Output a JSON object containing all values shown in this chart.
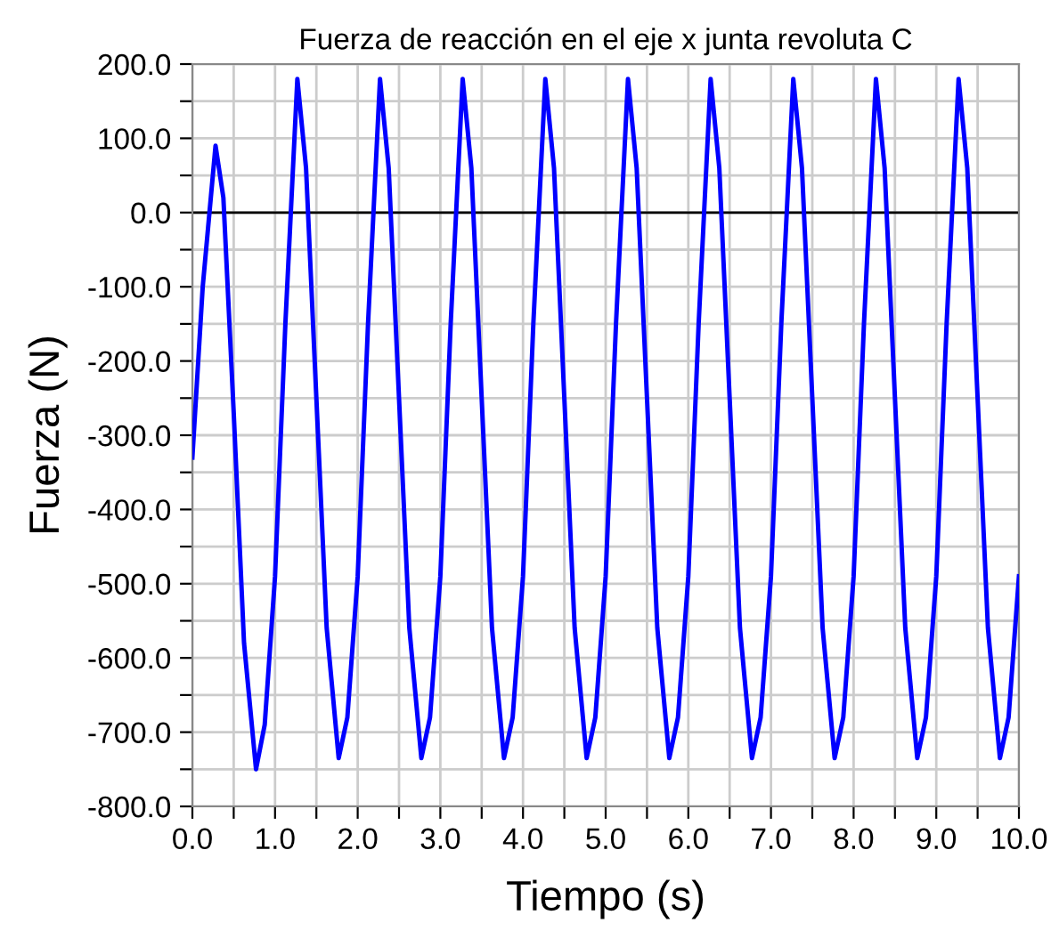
{
  "chart_data": {
    "type": "line",
    "title": "Fuerza de reacción en el eje x junta revoluta C",
    "xlabel": "Tiempo (s)",
    "ylabel": "Fuerza (N)",
    "series": [
      {
        "color": "#0000ff",
        "x": [
          0,
          0.125,
          0.28,
          0.375,
          0.5,
          0.625,
          0.77,
          0.875,
          1,
          1.125,
          1.27,
          1.375,
          1.5,
          1.625,
          1.77,
          1.875,
          2,
          2.125,
          2.27,
          2.375,
          2.5,
          2.625,
          2.77,
          2.875,
          3,
          3.125,
          3.27,
          3.375,
          3.5,
          3.625,
          3.77,
          3.875,
          4,
          4.125,
          4.27,
          4.375,
          4.5,
          4.625,
          4.77,
          4.875,
          5,
          5.125,
          5.27,
          5.375,
          5.5,
          5.625,
          5.77,
          5.875,
          6,
          6.125,
          6.27,
          6.375,
          6.5,
          6.625,
          6.77,
          6.875,
          7,
          7.125,
          7.27,
          7.375,
          7.5,
          7.625,
          7.77,
          7.875,
          8,
          8.125,
          8.27,
          8.375,
          8.5,
          8.625,
          8.77,
          8.875,
          9,
          9.125,
          9.27,
          9.375,
          9.5,
          9.625,
          9.77,
          9.875,
          10
        ],
        "values": [
          -330,
          -100,
          90,
          20,
          -270,
          -580,
          -750,
          -690,
          -490,
          -150,
          180,
          60,
          -250,
          -560,
          -735,
          -680,
          -490,
          -150,
          180,
          60,
          -250,
          -560,
          -735,
          -680,
          -490,
          -150,
          180,
          60,
          -250,
          -560,
          -735,
          -680,
          -490,
          -150,
          180,
          60,
          -250,
          -560,
          -735,
          -680,
          -490,
          -150,
          180,
          60,
          -250,
          -560,
          -735,
          -680,
          -490,
          -150,
          180,
          60,
          -250,
          -560,
          -735,
          -680,
          -490,
          -150,
          180,
          60,
          -250,
          -560,
          -735,
          -680,
          -490,
          -150,
          180,
          60,
          -250,
          -560,
          -735,
          -680,
          -490,
          -150,
          180,
          60,
          -250,
          -560,
          -735,
          -680,
          -490
        ]
      }
    ],
    "xlim": [
      0,
      10
    ],
    "xticks": [
      {
        "value": 0,
        "label": "0.0"
      },
      {
        "value": 0.5,
        "label": null
      },
      {
        "value": 1,
        "label": "1.0"
      },
      {
        "value": 1.5,
        "label": null
      },
      {
        "value": 2,
        "label": "2.0"
      },
      {
        "value": 2.5,
        "label": null
      },
      {
        "value": 3,
        "label": "3.0"
      },
      {
        "value": 3.5,
        "label": null
      },
      {
        "value": 4,
        "label": "4.0"
      },
      {
        "value": 4.5,
        "label": null
      },
      {
        "value": 5,
        "label": "5.0"
      },
      {
        "value": 5.5,
        "label": null
      },
      {
        "value": 6,
        "label": "6.0"
      },
      {
        "value": 6.5,
        "label": null
      },
      {
        "value": 7,
        "label": "7.0"
      },
      {
        "value": 7.5,
        "label": null
      },
      {
        "value": 8,
        "label": "8.0"
      },
      {
        "value": 8.5,
        "label": null
      },
      {
        "value": 9,
        "label": "9.0"
      },
      {
        "value": 9.5,
        "label": null
      },
      {
        "value": 10,
        "label": "10.0"
      }
    ],
    "ylim": [
      -800,
      200
    ],
    "yticks": [
      {
        "value": -800,
        "label": "-800.0"
      },
      {
        "value": -750,
        "label": null
      },
      {
        "value": -700,
        "label": "-700.0"
      },
      {
        "value": -650,
        "label": null
      },
      {
        "value": -600,
        "label": "-600.0"
      },
      {
        "value": -550,
        "label": null
      },
      {
        "value": -500,
        "label": "-500.0"
      },
      {
        "value": -450,
        "label": null
      },
      {
        "value": -400,
        "label": "-400.0"
      },
      {
        "value": -350,
        "label": null
      },
      {
        "value": -300,
        "label": "-300.0"
      },
      {
        "value": -250,
        "label": null
      },
      {
        "value": -200,
        "label": "-200.0"
      },
      {
        "value": -150,
        "label": null
      },
      {
        "value": -100,
        "label": "-100.0"
      },
      {
        "value": -50,
        "label": null
      },
      {
        "value": 0,
        "label": "0.0"
      },
      {
        "value": 50,
        "label": null
      },
      {
        "value": 100,
        "label": "100.0"
      },
      {
        "value": 150,
        "label": null
      },
      {
        "value": 200,
        "label": "200.0"
      }
    ],
    "ref_lines": [
      {
        "axis": "y",
        "value": 0,
        "color": "#000000"
      }
    ],
    "grid": true,
    "marker": "none",
    "line_style": "solid",
    "legend": false
  }
}
